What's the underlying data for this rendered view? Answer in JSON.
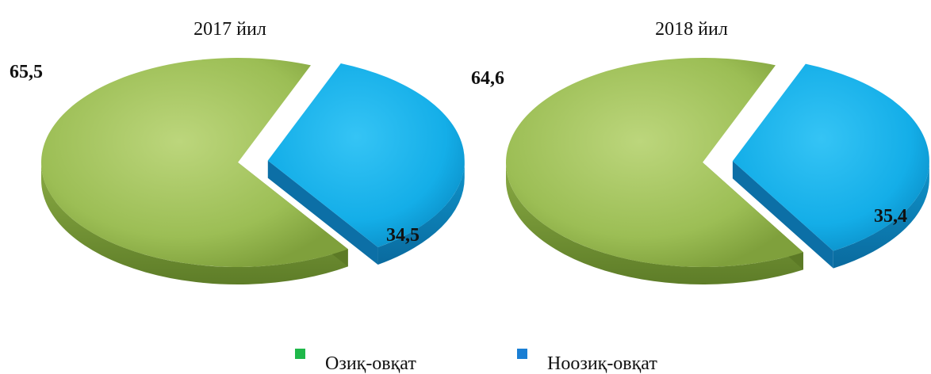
{
  "chart_data": [
    {
      "type": "pie",
      "title": "2017 йил",
      "slices": [
        {
          "label": "Озиқ-овқат",
          "value": 65.5,
          "display": "65,5"
        },
        {
          "label": "Ноозиқ-овқат",
          "value": 34.5,
          "display": "34,5"
        }
      ]
    },
    {
      "type": "pie",
      "title": "2018 йил",
      "slices": [
        {
          "label": "Озиқ-овқат",
          "value": 64.6,
          "display": "64,6"
        },
        {
          "label": "Ноозиқ-овқат",
          "value": 35.4,
          "display": "35,4"
        }
      ]
    }
  ],
  "legend": {
    "placement": "bottom",
    "items": [
      {
        "label": "Озиқ-овқат",
        "color": "#1fb84a"
      },
      {
        "label": "Ноозиқ-овқат",
        "color": "#1a7fd4"
      }
    ]
  },
  "colors": {
    "food": "#9cbe55",
    "food_dark": "#5c7a26",
    "nonfood": "#14aee8",
    "nonfood_dark": "#0c6fa6"
  }
}
